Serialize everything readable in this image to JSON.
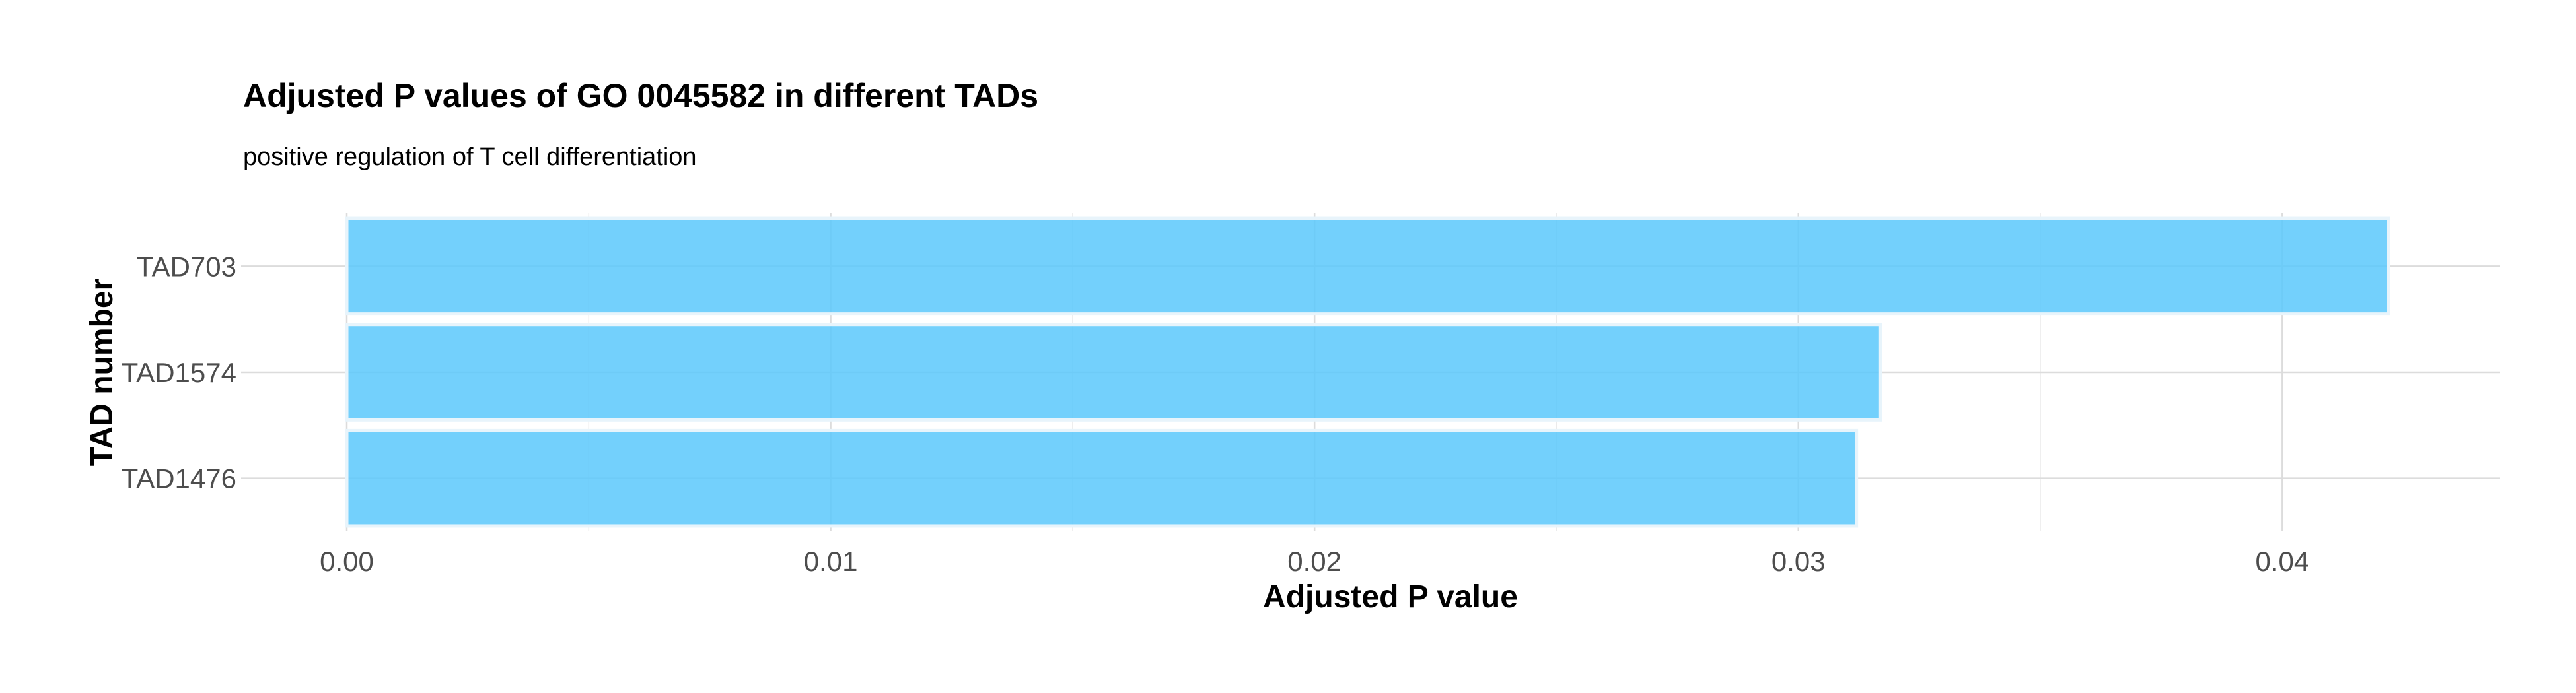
{
  "chart_data": {
    "type": "bar",
    "orientation": "horizontal",
    "title": "Adjusted P values of GO 0045582 in different TADs",
    "subtitle": "positive regulation of T cell differentiation",
    "xlabel": "Adjusted P value",
    "ylabel": "TAD number",
    "categories": [
      "TAD703",
      "TAD1574",
      "TAD1476"
    ],
    "values": [
      0.0422,
      0.0317,
      0.0312
    ],
    "xlim": [
      0,
      0.0445
    ],
    "xticks": [
      0.0,
      0.01,
      0.02,
      0.03,
      0.04
    ],
    "xtick_labels": [
      "0.00",
      "0.01",
      "0.02",
      "0.03",
      "0.04"
    ],
    "bar_color": "#5bc8fb",
    "bar_opacity": 0.85,
    "grid": true,
    "legend": "none"
  }
}
